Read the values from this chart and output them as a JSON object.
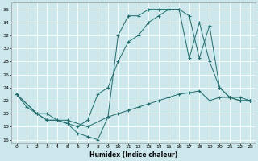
{
  "xlabel": "Humidex (Indice chaleur)",
  "bg_color": "#cce8ec",
  "line_color": "#1e6b6b",
  "grid_color": "#b0d0d8",
  "xlim": [
    -0.5,
    23.5
  ],
  "ylim": [
    15.5,
    37.0
  ],
  "xticks": [
    0,
    1,
    2,
    3,
    4,
    5,
    6,
    7,
    8,
    9,
    10,
    11,
    12,
    13,
    14,
    15,
    16,
    17,
    18,
    19,
    20,
    21,
    22,
    23
  ],
  "yticks": [
    16,
    18,
    20,
    22,
    24,
    26,
    28,
    30,
    32,
    34,
    36
  ],
  "line1_x": [
    0,
    1,
    2,
    3,
    4,
    5,
    6,
    7,
    8,
    9,
    10,
    11,
    12,
    13,
    14,
    15,
    16,
    17,
    18,
    19,
    20,
    21,
    22,
    23
  ],
  "line1_y": [
    23,
    21,
    20,
    20,
    19,
    18.5,
    17,
    16.5,
    16,
    19.5,
    32,
    35,
    35,
    36,
    36,
    36,
    36,
    35,
    28.5,
    33.5,
    24,
    22.5,
    22,
    22
  ],
  "line2_x": [
    0,
    2,
    3,
    4,
    5,
    6,
    7,
    8,
    9,
    10,
    11,
    12,
    13,
    14,
    15,
    16,
    17,
    18,
    19,
    20,
    21,
    22,
    23
  ],
  "line2_y": [
    23,
    20,
    19,
    19,
    18.5,
    18,
    19,
    23,
    24,
    28,
    31,
    32,
    34,
    35,
    36,
    36,
    28.5,
    34,
    28,
    24,
    22.5,
    22,
    22
  ],
  "line3_x": [
    0,
    2,
    3,
    5,
    7,
    9,
    10,
    11,
    12,
    13,
    14,
    15,
    16,
    17,
    18,
    19,
    20,
    21,
    22,
    23
  ],
  "line3_y": [
    23,
    20,
    19,
    19,
    18,
    19.5,
    20,
    20.5,
    21,
    21.5,
    22,
    22.5,
    23,
    23.2,
    23.5,
    22,
    22.5,
    22.5,
    22.5,
    22
  ],
  "figsize": [
    3.2,
    2.0
  ],
  "dpi": 100
}
